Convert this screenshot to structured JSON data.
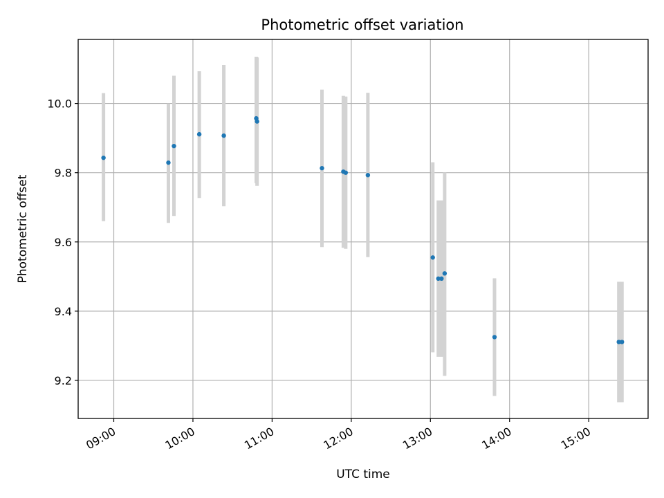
{
  "chart_data": {
    "type": "scatter",
    "title": "Photometric offset variation",
    "xlabel": "UTC time",
    "ylabel": "Photometric offset",
    "x_unit": "UTC time of day (hours)",
    "xlim": [
      8.55,
      15.75
    ],
    "ylim": [
      9.09,
      10.185
    ],
    "x_ticks": [
      {
        "value": 9,
        "label": "09:00"
      },
      {
        "value": 10,
        "label": "10:00"
      },
      {
        "value": 11,
        "label": "11:00"
      },
      {
        "value": 12,
        "label": "12:00"
      },
      {
        "value": 13,
        "label": "13:00"
      },
      {
        "value": 14,
        "label": "14:00"
      },
      {
        "value": 15,
        "label": "15:00"
      }
    ],
    "y_ticks": [
      {
        "value": 9.2,
        "label": "9.2"
      },
      {
        "value": 9.4,
        "label": "9.4"
      },
      {
        "value": 9.6,
        "label": "9.6"
      },
      {
        "value": 9.8,
        "label": "9.8"
      },
      {
        "value": 10.0,
        "label": "10.0"
      }
    ],
    "grid": true,
    "point_color": "#1f77b4",
    "errorbar_color": "#d3d3d3",
    "points": [
      {
        "x": 8.87,
        "y": 9.843,
        "ylo": 9.66,
        "yhi": 10.03
      },
      {
        "x": 9.69,
        "y": 9.829,
        "ylo": 9.655,
        "yhi": 10.0
      },
      {
        "x": 9.76,
        "y": 9.877,
        "ylo": 9.675,
        "yhi": 10.08
      },
      {
        "x": 10.08,
        "y": 9.911,
        "ylo": 9.727,
        "yhi": 10.093
      },
      {
        "x": 10.39,
        "y": 9.907,
        "ylo": 9.703,
        "yhi": 10.111
      },
      {
        "x": 10.8,
        "y": 9.957,
        "ylo": 9.77,
        "yhi": 10.135
      },
      {
        "x": 10.81,
        "y": 9.948,
        "ylo": 9.762,
        "yhi": 10.133
      },
      {
        "x": 11.63,
        "y": 9.813,
        "ylo": 9.585,
        "yhi": 10.04
      },
      {
        "x": 11.9,
        "y": 9.803,
        "ylo": 9.583,
        "yhi": 10.022
      },
      {
        "x": 11.93,
        "y": 9.8,
        "ylo": 9.58,
        "yhi": 10.02
      },
      {
        "x": 12.21,
        "y": 9.793,
        "ylo": 9.556,
        "yhi": 10.031
      },
      {
        "x": 13.03,
        "y": 9.555,
        "ylo": 9.281,
        "yhi": 9.83
      },
      {
        "x": 13.1,
        "y": 9.494,
        "ylo": 9.268,
        "yhi": 9.72
      },
      {
        "x": 13.14,
        "y": 9.494,
        "ylo": 9.268,
        "yhi": 9.72
      },
      {
        "x": 13.18,
        "y": 9.509,
        "ylo": 9.213,
        "yhi": 9.8
      },
      {
        "x": 13.81,
        "y": 9.325,
        "ylo": 9.155,
        "yhi": 9.495
      },
      {
        "x": 15.38,
        "y": 9.311,
        "ylo": 9.137,
        "yhi": 9.485
      },
      {
        "x": 15.42,
        "y": 9.311,
        "ylo": 9.137,
        "yhi": 9.485
      }
    ]
  }
}
